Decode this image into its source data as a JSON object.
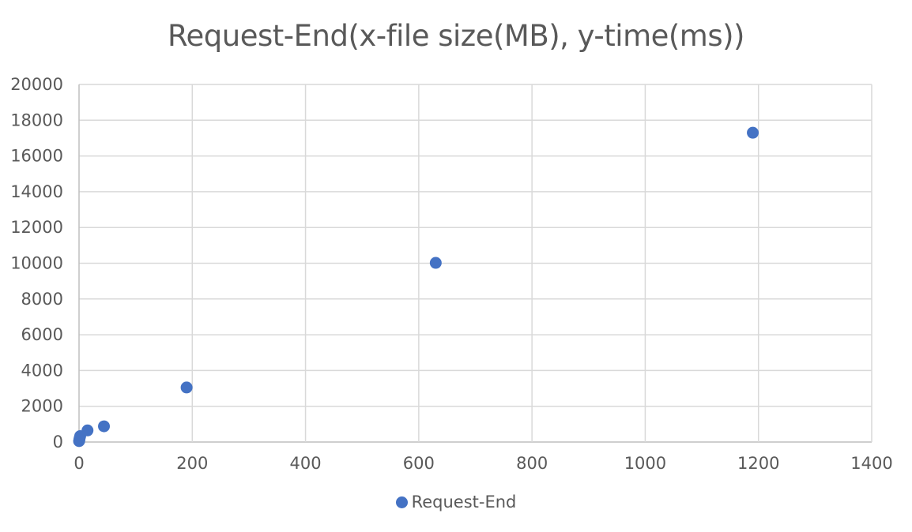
{
  "chart_data": {
    "type": "scatter",
    "title": "Request-End(x-file size(MB), y-time(ms))",
    "xlabel": "",
    "ylabel": "",
    "xlim": [
      0,
      1400
    ],
    "ylim": [
      0,
      20000
    ],
    "x_ticks": [
      0,
      200,
      400,
      600,
      800,
      1000,
      1200,
      1400
    ],
    "y_ticks": [
      0,
      2000,
      4000,
      6000,
      8000,
      10000,
      12000,
      14000,
      16000,
      18000,
      20000
    ],
    "grid": true,
    "legend_position": "bottom",
    "series": [
      {
        "name": "Request-End",
        "color": "#4472C4",
        "points": [
          {
            "x": 0.1,
            "y": 50
          },
          {
            "x": 0.5,
            "y": 100
          },
          {
            "x": 1,
            "y": 200
          },
          {
            "x": 2,
            "y": 330
          },
          {
            "x": 15,
            "y": 650
          },
          {
            "x": 44,
            "y": 880
          },
          {
            "x": 190,
            "y": 3050
          },
          {
            "x": 630,
            "y": 10020
          },
          {
            "x": 1190,
            "y": 17300
          }
        ]
      }
    ]
  }
}
